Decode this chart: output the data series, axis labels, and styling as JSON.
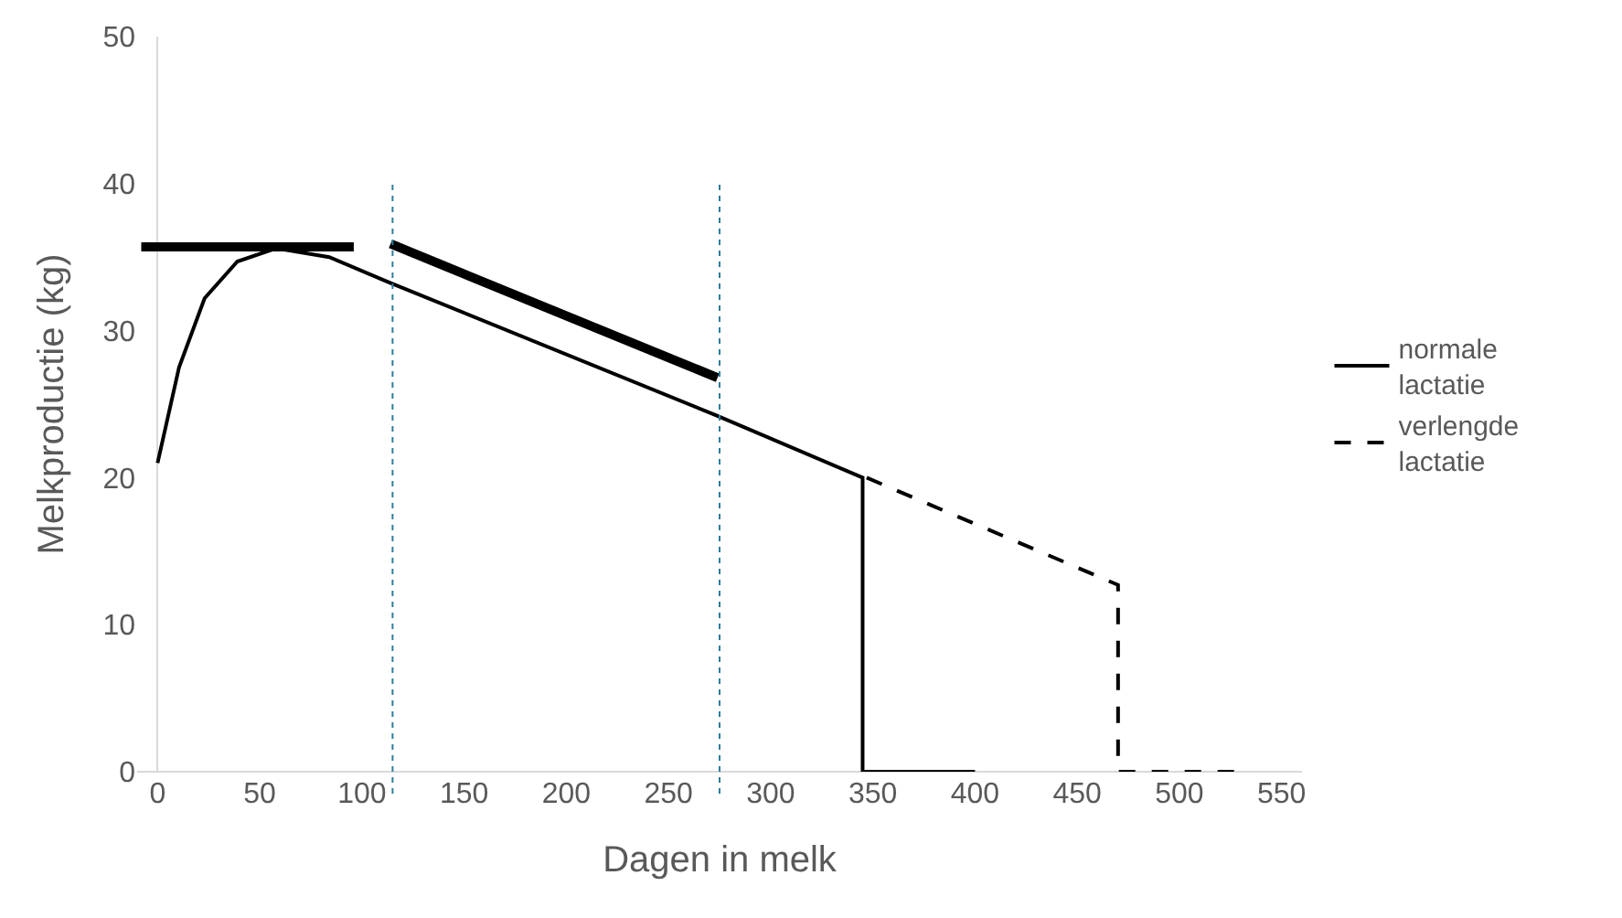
{
  "chart_data": {
    "type": "line",
    "xlabel": "Dagen in melk",
    "ylabel": "Melkproductie (kg)",
    "xlim": [
      -10,
      560
    ],
    "xticks": [
      0,
      50,
      100,
      150,
      200,
      250,
      300,
      350,
      400,
      450,
      500,
      550
    ],
    "ylim": [
      0,
      50
    ],
    "yticks": [
      0,
      10,
      20,
      30,
      40,
      50
    ],
    "legend": "right",
    "series": [
      {
        "name": "normale lactatie",
        "color": "#000000",
        "line_style": "solid",
        "x": [
          0,
          10.5,
          23,
          39,
          58,
          84,
          113,
          274,
          345,
          345,
          400
        ],
        "values": [
          21,
          27.5,
          32.2,
          34.7,
          35.6,
          35.0,
          33.3,
          24.2,
          20,
          0,
          0
        ]
      },
      {
        "name": "verlengde lactatie",
        "color": "#000000",
        "line_style": "dashed",
        "x": [
          347,
          470,
          470,
          532
        ],
        "values": [
          20,
          12.7,
          0,
          0
        ]
      },
      {
        "color": "#000000",
        "line_style": "solid",
        "x": [
          -8,
          96
        ],
        "values": [
          35.7,
          35.7
        ]
      },
      {
        "color": "#000000",
        "line_style": "solid",
        "x": [
          114,
          274
        ],
        "values": [
          35.9,
          26.8
        ]
      }
    ],
    "ref_lines": [
      {
        "axis": "x",
        "value": 115,
        "color": "#2e7d9a",
        "line_style": "dotted"
      },
      {
        "axis": "x",
        "value": 275,
        "color": "#2e7d9a",
        "line_style": "dotted"
      }
    ]
  }
}
